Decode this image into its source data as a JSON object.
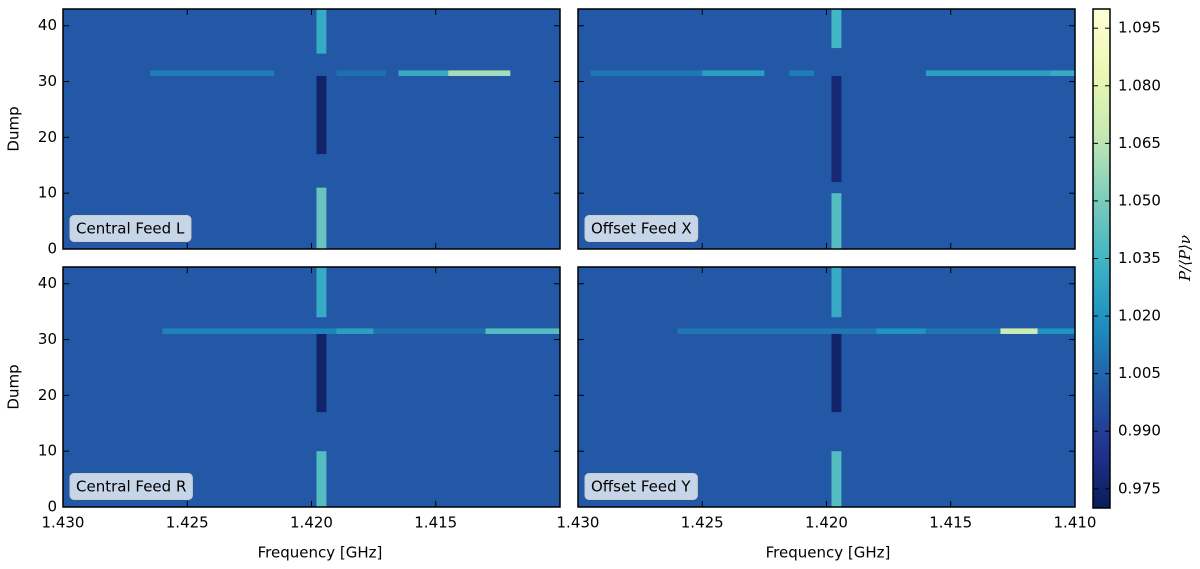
{
  "chart_data": {
    "type": "heatmap",
    "xlabel": "Frequency [GHz]",
    "ylabel": "Dump",
    "colorbar_label": "P/⟨P⟩ν",
    "xlim": [
      1.43,
      1.41
    ],
    "ylim": [
      0,
      43
    ],
    "clim": [
      0.97,
      1.1
    ],
    "colormap": "YlGnBu_r",
    "xticks": [
      {
        "value": 1.43,
        "label": "1.430"
      },
      1.425,
      {
        "value": 1.42,
        "label": "1.420"
      },
      1.415,
      {
        "value": 1.41,
        "label": "1.410"
      }
    ],
    "yticks": [
      0,
      10,
      20,
      30,
      40
    ],
    "cticks": [
      0.975,
      {
        "value": 0.99,
        "label": "0.990"
      },
      1.005,
      {
        "value": 1.02,
        "label": "1.020"
      },
      1.035,
      {
        "value": 1.05,
        "label": "1.050"
      },
      1.065,
      {
        "value": 1.08,
        "label": "1.080"
      },
      1.095
    ],
    "panels": [
      {
        "label": "Central Feed L",
        "background": 1.0,
        "features": [
          {
            "x": [
              1.4265,
              1.4215
            ],
            "y": [
              31,
              32
            ],
            "value": 1.012
          },
          {
            "x": [
              1.419,
              1.417
            ],
            "y": [
              31,
              32
            ],
            "value": 1.008
          },
          {
            "x": [
              1.4165,
              1.4145
            ],
            "y": [
              31,
              32
            ],
            "value": 1.03
          },
          {
            "x": [
              1.4145,
              1.412
            ],
            "y": [
              31,
              32
            ],
            "value": 1.06
          },
          {
            "x": [
              1.4198,
              1.4194
            ],
            "y": [
              0,
              11
            ],
            "value": 1.045
          },
          {
            "x": [
              1.4198,
              1.4194
            ],
            "y": [
              17,
              31
            ],
            "value": 0.975
          },
          {
            "x": [
              1.4198,
              1.4194
            ],
            "y": [
              35,
              43
            ],
            "value": 1.03
          }
        ]
      },
      {
        "label": "Offset Feed X",
        "background": 1.0,
        "features": [
          {
            "x": [
              1.4295,
              1.425
            ],
            "y": [
              31,
              32
            ],
            "value": 1.01
          },
          {
            "x": [
              1.425,
              1.4225
            ],
            "y": [
              31,
              32
            ],
            "value": 1.025
          },
          {
            "x": [
              1.4215,
              1.4205
            ],
            "y": [
              31,
              32
            ],
            "value": 1.012
          },
          {
            "x": [
              1.416,
              1.411
            ],
            "y": [
              31,
              32
            ],
            "value": 1.025
          },
          {
            "x": [
              1.411,
              1.41
            ],
            "y": [
              31,
              32
            ],
            "value": 1.03
          },
          {
            "x": [
              1.4198,
              1.4194
            ],
            "y": [
              0,
              10
            ],
            "value": 1.04
          },
          {
            "x": [
              1.4198,
              1.4194
            ],
            "y": [
              12,
              31
            ],
            "value": 0.978
          },
          {
            "x": [
              1.4198,
              1.4194
            ],
            "y": [
              36,
              43
            ],
            "value": 1.035
          }
        ]
      },
      {
        "label": "Central Feed R",
        "background": 1.0,
        "features": [
          {
            "x": [
              1.426,
              1.419
            ],
            "y": [
              31,
              32
            ],
            "value": 1.015
          },
          {
            "x": [
              1.419,
              1.4175
            ],
            "y": [
              31,
              32
            ],
            "value": 1.025
          },
          {
            "x": [
              1.4175,
              1.413
            ],
            "y": [
              31,
              32
            ],
            "value": 1.008
          },
          {
            "x": [
              1.413,
              1.41
            ],
            "y": [
              31,
              32
            ],
            "value": 1.04
          },
          {
            "x": [
              1.4198,
              1.4194
            ],
            "y": [
              0,
              10
            ],
            "value": 1.04
          },
          {
            "x": [
              1.4198,
              1.4194
            ],
            "y": [
              17,
              31
            ],
            "value": 0.975
          },
          {
            "x": [
              1.4198,
              1.4194
            ],
            "y": [
              34,
              43
            ],
            "value": 1.03
          }
        ]
      },
      {
        "label": "Offset Feed Y",
        "background": 1.0,
        "features": [
          {
            "x": [
              1.426,
              1.418
            ],
            "y": [
              31,
              32
            ],
            "value": 1.01
          },
          {
            "x": [
              1.418,
              1.416
            ],
            "y": [
              31,
              32
            ],
            "value": 1.02
          },
          {
            "x": [
              1.416,
              1.413
            ],
            "y": [
              31,
              32
            ],
            "value": 1.01
          },
          {
            "x": [
              1.413,
              1.4115
            ],
            "y": [
              31,
              32
            ],
            "value": 1.07
          },
          {
            "x": [
              1.4115,
              1.41
            ],
            "y": [
              31,
              32
            ],
            "value": 1.02
          },
          {
            "x": [
              1.4198,
              1.4194
            ],
            "y": [
              0,
              10
            ],
            "value": 1.04
          },
          {
            "x": [
              1.4198,
              1.4194
            ],
            "y": [
              17,
              31
            ],
            "value": 0.975
          },
          {
            "x": [
              1.4198,
              1.4194
            ],
            "y": [
              34,
              43
            ],
            "value": 1.03
          }
        ]
      }
    ]
  }
}
